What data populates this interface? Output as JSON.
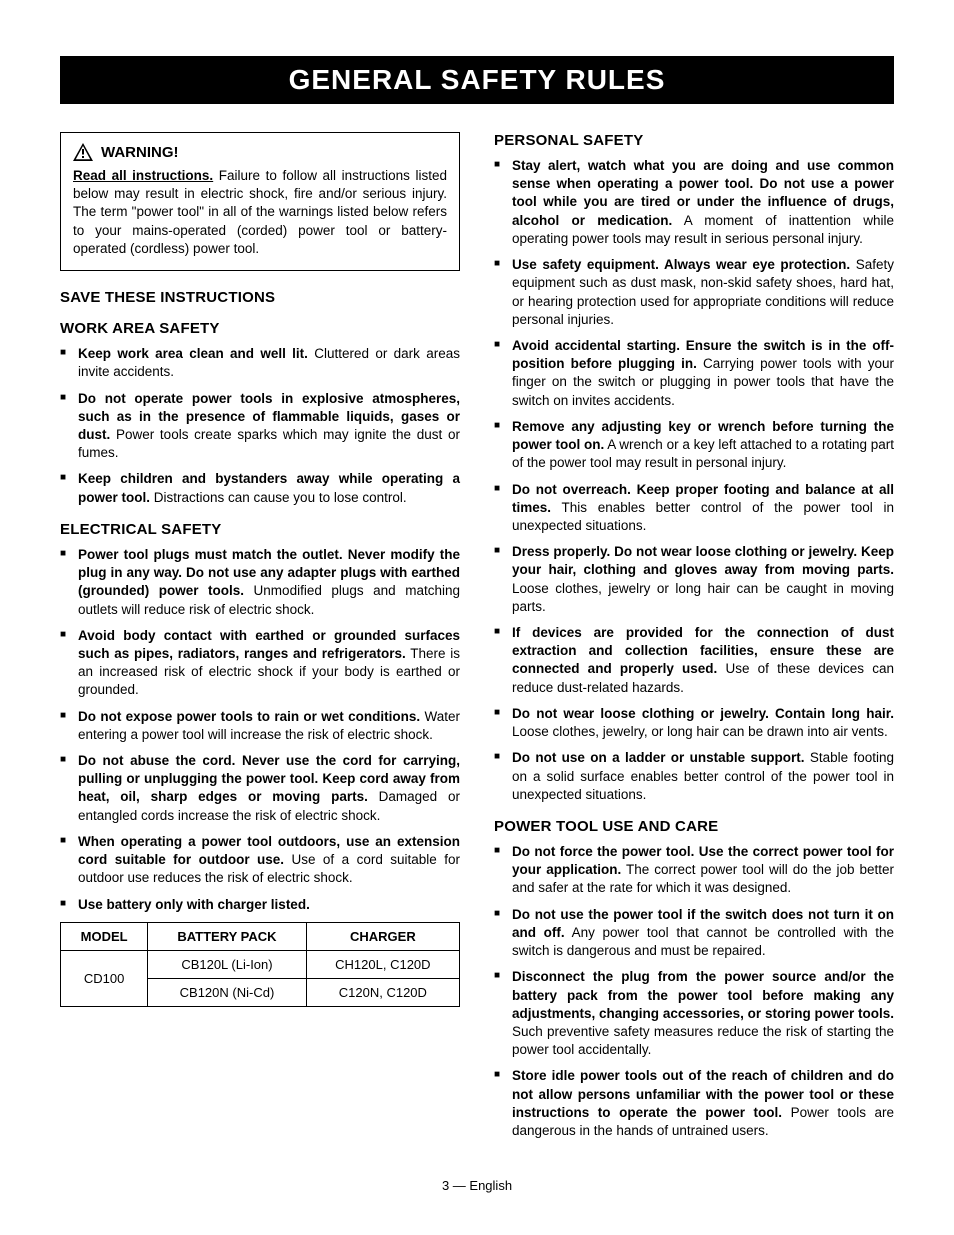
{
  "header": {
    "title": "GENERAL SAFETY RULES"
  },
  "warning": {
    "label": "WARNING!",
    "lead_bold": "Read all instructions.",
    "body": " Failure to follow all instructions listed below may result in electric shock, fire and/or serious injury. The term \"power tool\" in all of the warnings listed below refers to your mains-operated (corded) power tool or battery-operated (cordless) power tool."
  },
  "sections": {
    "save": "SAVE THESE INSTRUCTIONS",
    "work_area": {
      "title": "WORK AREA SAFETY",
      "items": [
        {
          "bold": "Keep work area clean and well lit.",
          "rest": " Cluttered or dark areas invite accidents."
        },
        {
          "bold": "Do not operate power tools in explosive atmospheres, such as in the presence of flammable liquids, gases or dust.",
          "rest": " Power tools create sparks which may ignite the dust or fumes."
        },
        {
          "bold": "Keep children and bystanders away while operating a power tool.",
          "rest": " Distractions can cause you to lose control."
        }
      ]
    },
    "electrical": {
      "title": "ELECTRICAL SAFETY",
      "items": [
        {
          "bold": "Power tool plugs must match the outlet. Never modify the plug in any way. Do not use any adapter plugs with earthed (grounded) power tools.",
          "rest": " Unmodified plugs and matching outlets will reduce risk of electric shock."
        },
        {
          "bold": "Avoid body contact with earthed or grounded surfaces such as pipes, radiators, ranges and refrigerators.",
          "rest": " There is an increased risk of electric shock if your body is earthed or grounded."
        },
        {
          "bold": "Do not expose power tools to rain or wet conditions.",
          "rest": " Water entering a power tool will increase the risk of electric shock."
        },
        {
          "bold": "Do not abuse the cord. Never use the cord for carrying, pulling or unplugging the power tool. Keep cord away from heat, oil, sharp edges or moving parts.",
          "rest": " Damaged or entangled cords increase the risk of electric shock."
        },
        {
          "bold": "When operating a power tool outdoors, use an extension cord suitable for outdoor use.",
          "rest": " Use of a cord suitable for outdoor use reduces the risk of electric shock."
        },
        {
          "bold": "Use battery only with charger listed.",
          "rest": ""
        }
      ]
    },
    "personal": {
      "title": "PERSONAL SAFETY",
      "items": [
        {
          "bold": "Stay alert, watch what you are doing and use common sense when operating a power tool. Do not use a power tool while you are tired or under the influence of drugs, alcohol or medication.",
          "rest": " A moment of inattention while operating power tools may result in serious personal injury."
        },
        {
          "bold": "Use safety equipment. Always wear eye protection.",
          "rest": " Safety equipment such as dust mask, non-skid safety shoes, hard hat, or hearing protection used for appropriate conditions will reduce personal injuries."
        },
        {
          "bold": "Avoid accidental starting. Ensure the switch is in the off-position before plugging in.",
          "rest": " Carrying power tools with your finger on the switch or plugging in power tools that have the switch on invites accidents."
        },
        {
          "bold": "Remove any adjusting key or wrench before turning the power tool on.",
          "rest": " A wrench or a key left attached to a rotating part of the power tool may result in personal injury."
        },
        {
          "bold": "Do not overreach. Keep proper footing and balance at all times.",
          "rest": " This enables better control of the power tool in unexpected situations."
        },
        {
          "bold": "Dress properly. Do not wear loose clothing or jewelry. Keep your hair, clothing and gloves away from moving parts.",
          "rest": " Loose clothes, jewelry or long hair can be caught in moving parts."
        },
        {
          "bold": "If devices are provided for the connection of dust extraction and collection facilities, ensure these are connected and properly used.",
          "rest": " Use of these devices can reduce dust-related hazards."
        },
        {
          "bold": "Do not wear loose clothing or jewelry. Contain long hair.",
          "rest": " Loose clothes, jewelry, or long hair can be drawn into air vents."
        },
        {
          "bold": "Do not use on a ladder or unstable support.",
          "rest": " Stable footing on a solid surface enables better control of the power tool in unexpected situations."
        }
      ]
    },
    "power_tool": {
      "title": "POWER TOOL USE AND CARE",
      "items": [
        {
          "bold": "Do not force the power tool. Use the correct power tool for your application.",
          "rest": " The correct power tool will do the job better and safer at the rate for which it was designed."
        },
        {
          "bold": "Do not use the power tool if the switch does not turn it on and off.",
          "rest": " Any power tool that cannot be controlled with the switch is dangerous and must be repaired."
        },
        {
          "bold": "Disconnect the plug from the power source and/or the battery pack from the power tool before making any adjustments, changing accessories, or storing power tools.",
          "rest": " Such preventive safety measures reduce the risk of starting the power tool accidentally."
        },
        {
          "bold": "Store idle power tools out of the reach of children and do not allow persons unfamiliar with the power tool or these instructions to operate the power tool.",
          "rest": " Power tools are dangerous in the hands of untrained users."
        }
      ]
    }
  },
  "table": {
    "headers": {
      "model": "MODEL",
      "battery": "BATTERY PACK",
      "charger": "CHARGER"
    },
    "model": "CD100",
    "rows": [
      {
        "battery": "CB120L (Li-Ion)",
        "charger": "CH120L, C120D"
      },
      {
        "battery": "CB120N (Ni-Cd)",
        "charger": "C120N, C120D"
      }
    ]
  },
  "footer": {
    "page": "3 — English"
  }
}
